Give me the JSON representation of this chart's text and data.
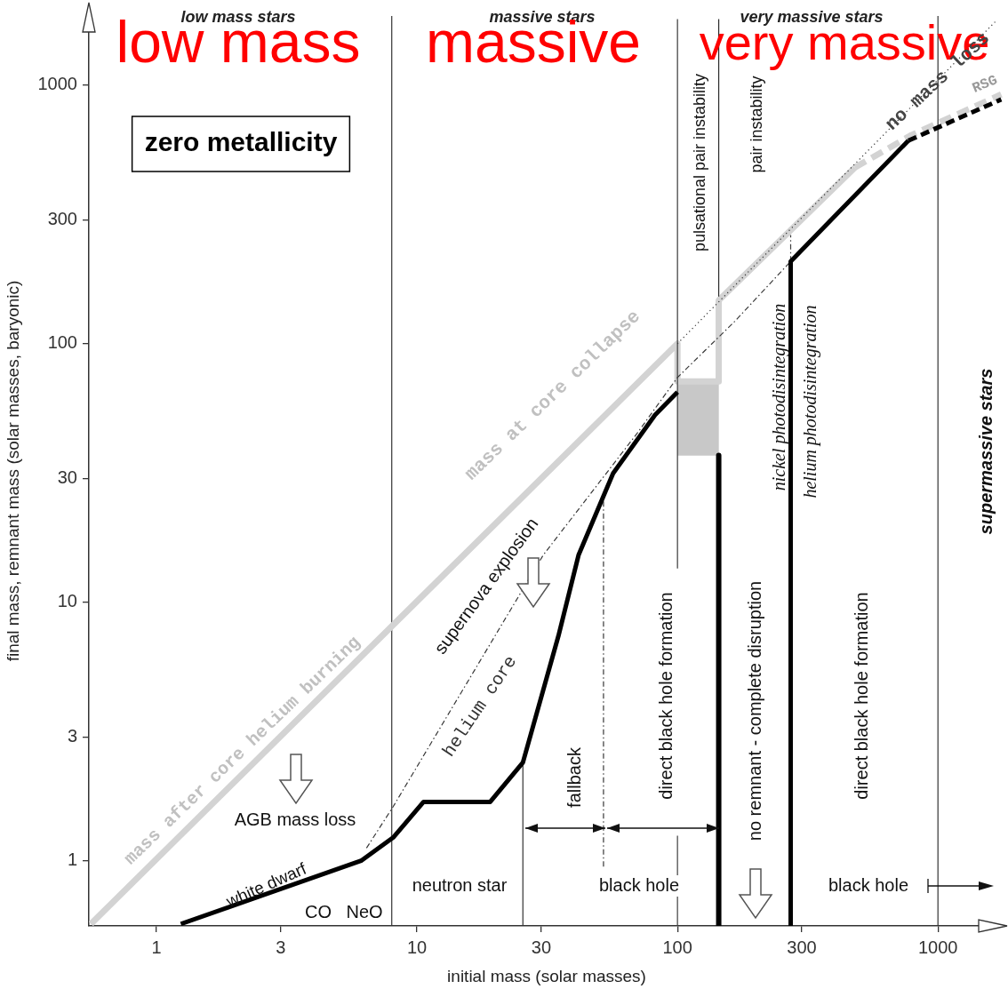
{
  "chart_data": {
    "type": "line",
    "xlabel": "initial mass (solar masses)",
    "ylabel": "final mass, remnant mass (solar masses, baryonic)",
    "log": "xy",
    "grid": false,
    "marker": "none",
    "xlim": [
      0.55,
      1800
    ],
    "xticks": [
      1,
      3,
      10,
      30,
      100,
      300,
      1000
    ],
    "ylim": [
      0.56,
      1850
    ],
    "yticks": [
      1,
      3,
      10,
      30,
      100,
      300,
      1000
    ],
    "series": [
      {
        "type": "bar",
        "color": "#c8c8c8",
        "x": [
          120
        ],
        "values": [
          34.5
        ],
        "base": [
          37
        ]
      },
      {
        "color": "#d3d3d3",
        "line_style": "solid",
        "x": [
          0.56,
          100,
          100,
          144,
          144,
          480
        ],
        "values": [
          0.57,
          100,
          71.5,
          71.5,
          147,
          480
        ]
      },
      {
        "color": "#d3d3d3",
        "line_style": "dashed",
        "x": [
          480,
          790,
          1750
        ],
        "values": [
          480,
          640,
          920
        ]
      },
      {
        "color": "#303030",
        "line_style": "dotted",
        "x": [
          100,
          1680
        ],
        "values": [
          100,
          1780
        ]
      },
      {
        "color": "#383838",
        "line_style": "dashed",
        "x": [
          6.4,
          8.1,
          30.5,
          70,
          100,
          166,
          272
        ],
        "values": [
          1.12,
          1.62,
          15.2,
          45,
          74,
          122,
          208
        ]
      },
      {
        "color": "#333333",
        "line_style": "solid",
        "x": [
          25.5,
          25.5
        ],
        "values": [
          0.56,
          2.4
        ]
      },
      {
        "color": "#3a3a3a",
        "line_style": "solid",
        "x": [
          100,
          100
        ],
        "values": [
          13.5,
          1800
        ]
      },
      {
        "color": "#404040",
        "line_style": "solid",
        "x": [
          100,
          100
        ],
        "values": [
          0.56,
          1.25
        ]
      },
      {
        "color": "#2a2a2a",
        "line_style": "solid",
        "x": [
          144,
          144
        ],
        "values": [
          152,
          1800
        ]
      },
      {
        "color": "#363636",
        "line_style": "dashed",
        "x": [
          52,
          52
        ],
        "values": [
          0.95,
          26
        ]
      },
      {
        "color": "#3d3d3d",
        "line_style": "dashed",
        "x": [
          272,
          272
        ],
        "values": [
          208,
          263
        ]
      },
      {
        "color": "#000000",
        "line_style": "solid",
        "x": [
          1.24,
          6.1,
          8.1,
          10.6,
          19.1,
          25.5,
          34.9,
          41.7,
          56.6,
          82,
          100
        ],
        "values": [
          0.57,
          1.0,
          1.23,
          1.69,
          1.69,
          2.4,
          7.4,
          15.2,
          31.5,
          53,
          65
        ]
      },
      {
        "color": "#000000",
        "line_style": "solid",
        "x": [
          144,
          144
        ],
        "values": [
          37,
          0.56
        ]
      },
      {
        "color": "#000000",
        "line_style": "solid",
        "x": [
          272,
          272,
          770
        ],
        "values": [
          0.56,
          208,
          610
        ]
      },
      {
        "color": "#000000",
        "line_style": "dashed",
        "x": [
          770,
          1750
        ],
        "values": [
          610,
          880
        ]
      }
    ],
    "ref_lines": [
      {
        "axis": "x",
        "value": 8,
        "color": "#333333"
      },
      {
        "axis": "x",
        "value": 1000,
        "color": "#333333"
      }
    ],
    "annotations": [
      "low mass stars",
      "massive stars",
      "very massive stars",
      "low mass",
      "massive",
      "very massive",
      "zero metallicity",
      "pulsational pair instability",
      "pair instability",
      {
        "text": "no mass loss",
        "x": 1000,
        "y": 1032
      },
      "RSG",
      "mass at core collapse",
      "mass after core helium burning",
      "supernova explosion",
      "helium core",
      "nickel photodisintegration",
      "helium photodisintegration",
      "supermassive stars",
      "AGB mass loss",
      "white dwarf",
      "CO",
      "NeO",
      "neutron star",
      "black hole",
      "fallback",
      "direct black hole formation",
      "no remnant - complete disruption",
      "direct black hole formation",
      "black hole"
    ]
  }
}
